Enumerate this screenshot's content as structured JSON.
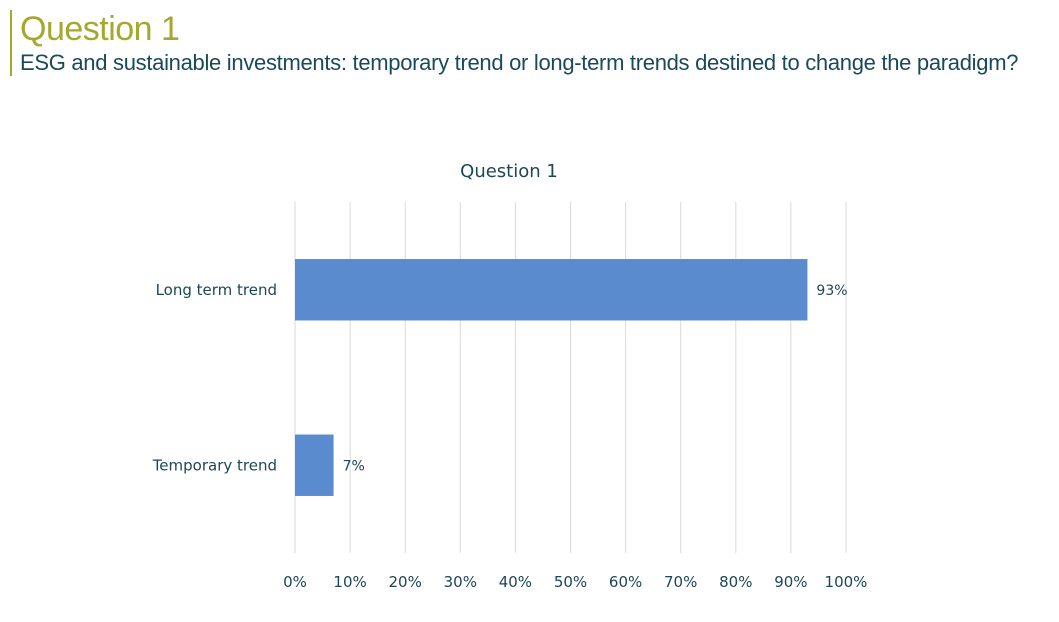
{
  "header": {
    "title": "Question 1",
    "subtitle": "ESG and sustainable investments: temporary trend or long-term trends destined to change the paradigm?"
  },
  "colors": {
    "accent": "#a4a82f",
    "text": "#1d4656",
    "bar": "#5b8bcf",
    "grid": "#d9d9d9"
  },
  "chart_data": {
    "type": "bar",
    "orientation": "horizontal",
    "title": "Question 1",
    "categories": [
      "Long term trend",
      "Temporary trend"
    ],
    "values": [
      93,
      7
    ],
    "data_labels": [
      "93%",
      "7%"
    ],
    "xlim": [
      0,
      100
    ],
    "x_ticks": [
      0,
      10,
      20,
      30,
      40,
      50,
      60,
      70,
      80,
      90,
      100
    ],
    "x_tick_labels": [
      "0%",
      "10%",
      "20%",
      "30%",
      "40%",
      "50%",
      "60%",
      "70%",
      "80%",
      "90%",
      "100%"
    ],
    "grid": true,
    "legend": "none"
  }
}
